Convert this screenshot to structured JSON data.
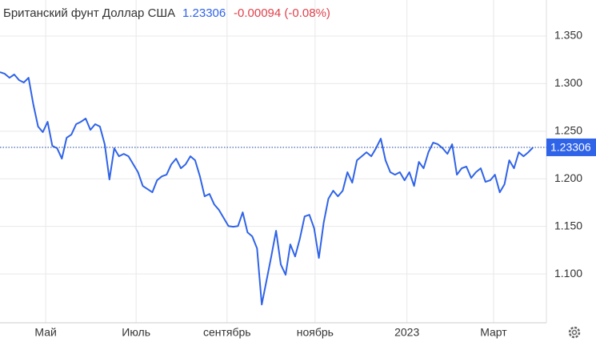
{
  "header": {
    "title": "Британский фунт Доллар США",
    "change": "-0.00094 (-0.08%)"
  },
  "chart_data": {
    "type": "line",
    "color": "#2f63e8",
    "values": [
      1.3121,
      1.3104,
      1.3062,
      1.3096,
      1.3037,
      1.3012,
      1.3062,
      1.2784,
      1.2549,
      1.249,
      1.2599,
      1.2346,
      1.2321,
      1.2212,
      1.2431,
      1.2464,
      1.2574,
      1.2599,
      1.2633,
      1.2515,
      1.2574,
      1.2549,
      1.2363,
      1.1993,
      1.2321,
      1.2237,
      1.2262,
      1.2237,
      1.2153,
      1.2069,
      1.1925,
      1.1892,
      1.1858,
      1.1984,
      1.2026,
      1.2043,
      1.2153,
      1.2212,
      1.2111,
      1.2153,
      1.2237,
      1.2195,
      1.2026,
      1.1816,
      1.1841,
      1.1732,
      1.1673,
      1.1589,
      1.1504,
      1.1496,
      1.1504,
      1.1648,
      1.1437,
      1.1395,
      1.1269,
      1.0679,
      1.0932,
      1.1184,
      1.1454,
      1.11,
      1.0991,
      1.1311,
      1.1184,
      1.137,
      1.1605,
      1.1622,
      1.1479,
      1.1168,
      1.1538,
      1.1791,
      1.1875,
      1.1816,
      1.1875,
      1.2069,
      1.1959,
      1.2195,
      1.2237,
      1.2279,
      1.2237,
      1.2321,
      1.2422,
      1.2195,
      1.2069,
      1.2043,
      1.2069,
      1.1984,
      1.2069,
      1.1925,
      1.2178,
      1.2111,
      1.2279,
      1.238,
      1.2363,
      1.2321,
      1.2262,
      1.2363,
      1.2043,
      1.2111,
      1.2128,
      1.201,
      1.2069,
      1.2111,
      1.1968,
      1.1984,
      1.2043,
      1.1858,
      1.1942,
      1.2195,
      1.2111,
      1.2279,
      1.2237,
      1.2279,
      1.23306
    ],
    "current_price": 1.23306,
    "xlim": [
      0,
      114.8
    ],
    "xticks": [
      {
        "value": 9.6,
        "label": "Май"
      },
      {
        "value": 28.6,
        "label": "Июль"
      },
      {
        "value": 47.7,
        "label": "сентябрь"
      },
      {
        "value": 66.2,
        "label": "ноябрь"
      },
      {
        "value": 85.5,
        "label": "2023"
      },
      {
        "value": 103.7,
        "label": "Март"
      }
    ],
    "ylim": [
      1.0487,
      1.3879
    ],
    "yticks": [
      {
        "value": 1.1,
        "label": "1.100"
      },
      {
        "value": 1.15,
        "label": "1.150"
      },
      {
        "value": 1.2,
        "label": "1.200"
      },
      {
        "value": 1.25,
        "label": "1.250"
      },
      {
        "value": 1.3,
        "label": "1.300"
      },
      {
        "value": 1.35,
        "label": "1.350"
      }
    ],
    "grid": true
  }
}
